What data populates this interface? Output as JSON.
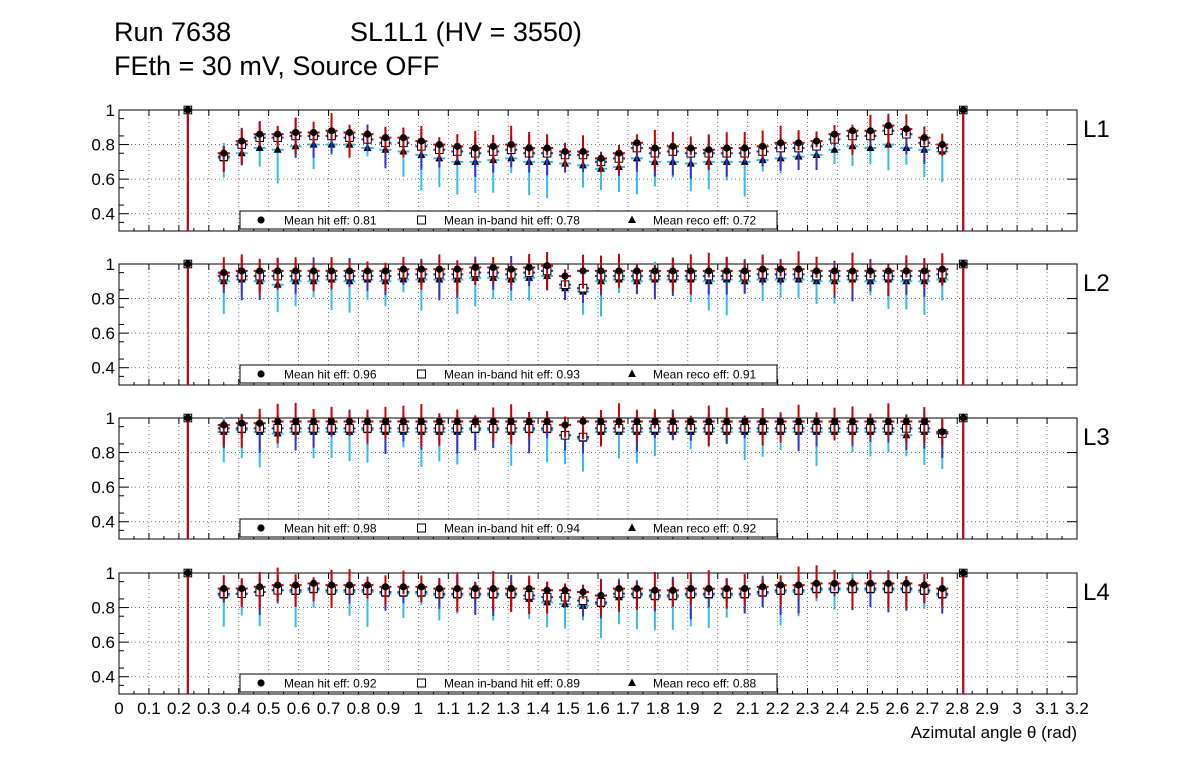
{
  "header": {
    "run": "Run 7638",
    "chamber": "SL1L1 (HV = 3550)",
    "settings": "FEth = 30 mV, Source OFF"
  },
  "colors": {
    "hit": "#cc0000",
    "inband": "#3333cc",
    "reco": "#33bbee",
    "axis": "#000000",
    "grid": "#555555"
  },
  "chart_data": {
    "type": "scatter",
    "xlabel": "Azimutal angle θ (rad)",
    "xlim": [
      0,
      3.2
    ],
    "ylim": [
      0.3,
      1.0
    ],
    "x_ticks": [
      0,
      0.1,
      0.2,
      0.3,
      0.4,
      0.5,
      0.6,
      0.7,
      0.8,
      0.9,
      1,
      1.1,
      1.2,
      1.3,
      1.4,
      1.5,
      1.6,
      1.7,
      1.8,
      1.9,
      2,
      2.1,
      2.2,
      2.3,
      2.4,
      2.5,
      2.6,
      2.7,
      2.8,
      2.9,
      3,
      3.1,
      3.2
    ],
    "x_tick_labels": [
      "0",
      "0.1",
      "0.2",
      "0.3",
      "0.4",
      "0.5",
      "0.6",
      "0.7",
      "0.8",
      "0.9",
      "1",
      "1.1",
      "1.2",
      "1.3",
      "1.4",
      "1.5",
      "1.6",
      "1.7",
      "1.8",
      "1.9",
      "2",
      "2.1",
      "2.2",
      "2.3",
      "2.4",
      "2.5",
      "2.6",
      "2.7",
      "2.8",
      "2.9",
      "3",
      "3.1",
      "3.2"
    ],
    "y_ticks": [
      0.4,
      0.6,
      0.8,
      1
    ],
    "y_tick_labels": [
      "0.4",
      "0.6",
      "0.8",
      "1"
    ],
    "x": [
      0.23,
      0.35,
      0.41,
      0.47,
      0.53,
      0.59,
      0.65,
      0.71,
      0.77,
      0.83,
      0.89,
      0.95,
      1.01,
      1.07,
      1.13,
      1.19,
      1.25,
      1.31,
      1.37,
      1.43,
      1.49,
      1.55,
      1.61,
      1.67,
      1.73,
      1.79,
      1.85,
      1.91,
      1.97,
      2.03,
      2.09,
      2.15,
      2.21,
      2.27,
      2.33,
      2.39,
      2.45,
      2.51,
      2.57,
      2.63,
      2.69,
      2.75,
      2.82
    ],
    "panels": [
      {
        "layer": "L1",
        "legend": {
          "hit": "Mean hit  eff: 0.81",
          "inband": "Mean in-band hit eff: 0.78",
          "reco": "Mean reco eff: 0.72"
        },
        "series": [
          {
            "name": "hit",
            "values": [
              1.0,
              0.75,
              0.82,
              0.86,
              0.86,
              0.87,
              0.87,
              0.88,
              0.87,
              0.86,
              0.84,
              0.84,
              0.82,
              0.8,
              0.79,
              0.78,
              0.79,
              0.8,
              0.78,
              0.78,
              0.76,
              0.76,
              0.72,
              0.75,
              0.81,
              0.78,
              0.79,
              0.78,
              0.77,
              0.78,
              0.78,
              0.79,
              0.81,
              0.81,
              0.82,
              0.86,
              0.88,
              0.88,
              0.91,
              0.89,
              0.84,
              0.8,
              1.0
            ]
          },
          {
            "name": "inband",
            "values": [
              1.0,
              0.73,
              0.8,
              0.84,
              0.84,
              0.85,
              0.85,
              0.85,
              0.84,
              0.83,
              0.81,
              0.81,
              0.79,
              0.77,
              0.76,
              0.75,
              0.76,
              0.77,
              0.75,
              0.75,
              0.74,
              0.74,
              0.7,
              0.72,
              0.78,
              0.75,
              0.76,
              0.75,
              0.75,
              0.75,
              0.75,
              0.76,
              0.78,
              0.78,
              0.79,
              0.83,
              0.85,
              0.85,
              0.88,
              0.86,
              0.81,
              0.78,
              1.0
            ]
          },
          {
            "name": "reco",
            "values": [
              1.0,
              0.72,
              0.75,
              0.78,
              0.77,
              0.79,
              0.8,
              0.8,
              0.8,
              0.78,
              0.77,
              0.76,
              0.74,
              0.72,
              0.7,
              0.7,
              0.71,
              0.72,
              0.7,
              0.7,
              0.69,
              0.68,
              0.66,
              0.67,
              0.72,
              0.7,
              0.7,
              0.69,
              0.7,
              0.7,
              0.7,
              0.71,
              0.72,
              0.73,
              0.74,
              0.77,
              0.79,
              0.78,
              0.8,
              0.78,
              0.77,
              0.76,
              1.0
            ]
          }
        ]
      },
      {
        "layer": "L2",
        "legend": {
          "hit": "Mean hit  eff: 0.96",
          "inband": "Mean in-band hit eff: 0.93",
          "reco": "Mean reco eff: 0.91"
        },
        "series": [
          {
            "name": "hit",
            "values": [
              1.0,
              0.95,
              0.96,
              0.96,
              0.96,
              0.96,
              0.96,
              0.96,
              0.96,
              0.96,
              0.96,
              0.97,
              0.97,
              0.97,
              0.97,
              0.98,
              0.98,
              0.97,
              0.98,
              0.99,
              0.93,
              0.96,
              0.96,
              0.96,
              0.96,
              0.96,
              0.96,
              0.96,
              0.96,
              0.96,
              0.96,
              0.97,
              0.97,
              0.97,
              0.96,
              0.96,
              0.96,
              0.96,
              0.96,
              0.96,
              0.96,
              0.97,
              1.0
            ]
          },
          {
            "name": "inband",
            "values": [
              1.0,
              0.93,
              0.93,
              0.93,
              0.93,
              0.93,
              0.93,
              0.93,
              0.93,
              0.93,
              0.93,
              0.94,
              0.94,
              0.94,
              0.94,
              0.95,
              0.95,
              0.94,
              0.95,
              0.96,
              0.88,
              0.86,
              0.93,
              0.93,
              0.93,
              0.93,
              0.93,
              0.93,
              0.93,
              0.93,
              0.93,
              0.94,
              0.94,
              0.94,
              0.93,
              0.93,
              0.93,
              0.93,
              0.93,
              0.93,
              0.93,
              0.94,
              1.0
            ]
          },
          {
            "name": "reco",
            "values": [
              1.0,
              0.9,
              0.91,
              0.9,
              0.88,
              0.9,
              0.9,
              0.91,
              0.9,
              0.91,
              0.9,
              0.91,
              0.91,
              0.91,
              0.91,
              0.92,
              0.92,
              0.91,
              0.92,
              0.93,
              0.86,
              0.84,
              0.9,
              0.91,
              0.9,
              0.91,
              0.91,
              0.91,
              0.9,
              0.91,
              0.9,
              0.91,
              0.91,
              0.91,
              0.9,
              0.9,
              0.91,
              0.9,
              0.91,
              0.9,
              0.9,
              0.91,
              1.0
            ]
          }
        ]
      },
      {
        "layer": "L3",
        "legend": {
          "hit": "Mean hit  eff: 0.98",
          "inband": "Mean in-band hit eff: 0.94",
          "reco": "Mean reco eff: 0.92"
        },
        "series": [
          {
            "name": "hit",
            "values": [
              1.0,
              0.96,
              0.97,
              0.97,
              0.98,
              0.98,
              0.98,
              0.98,
              0.98,
              0.98,
              0.98,
              0.98,
              0.98,
              0.98,
              0.98,
              0.98,
              0.98,
              0.98,
              0.98,
              0.98,
              0.96,
              0.98,
              0.98,
              0.98,
              0.98,
              0.98,
              0.98,
              0.98,
              0.98,
              0.98,
              0.98,
              0.98,
              0.98,
              0.98,
              0.98,
              0.98,
              0.98,
              0.98,
              0.98,
              0.98,
              0.98,
              0.92,
              1.0
            ]
          },
          {
            "name": "inband",
            "values": [
              1.0,
              0.94,
              0.94,
              0.94,
              0.94,
              0.94,
              0.94,
              0.94,
              0.94,
              0.94,
              0.94,
              0.94,
              0.94,
              0.94,
              0.94,
              0.94,
              0.94,
              0.94,
              0.94,
              0.94,
              0.9,
              0.89,
              0.94,
              0.94,
              0.94,
              0.94,
              0.94,
              0.94,
              0.94,
              0.94,
              0.94,
              0.94,
              0.94,
              0.94,
              0.94,
              0.94,
              0.94,
              0.94,
              0.94,
              0.94,
              0.94,
              0.91,
              1.0
            ]
          },
          {
            "name": "reco",
            "values": [
              1.0,
              0.92,
              0.93,
              0.92,
              0.91,
              0.92,
              0.92,
              0.92,
              0.92,
              0.93,
              0.92,
              0.92,
              0.92,
              0.92,
              0.92,
              0.93,
              0.93,
              0.92,
              0.93,
              0.93,
              0.9,
              0.88,
              0.92,
              0.92,
              0.92,
              0.92,
              0.92,
              0.92,
              0.92,
              0.92,
              0.92,
              0.92,
              0.92,
              0.92,
              0.92,
              0.92,
              0.92,
              0.92,
              0.92,
              0.9,
              0.92,
              0.91,
              1.0
            ]
          }
        ]
      },
      {
        "layer": "L4",
        "legend": {
          "hit": "Mean hit  eff: 0.92",
          "inband": "Mean in-band hit eff: 0.89",
          "reco": "Mean reco eff: 0.88"
        },
        "series": [
          {
            "name": "hit",
            "values": [
              1.0,
              0.91,
              0.91,
              0.92,
              0.93,
              0.93,
              0.94,
              0.93,
              0.93,
              0.93,
              0.92,
              0.92,
              0.92,
              0.91,
              0.91,
              0.91,
              0.91,
              0.91,
              0.91,
              0.9,
              0.9,
              0.89,
              0.87,
              0.91,
              0.91,
              0.9,
              0.9,
              0.91,
              0.91,
              0.91,
              0.91,
              0.92,
              0.93,
              0.93,
              0.94,
              0.94,
              0.94,
              0.94,
              0.94,
              0.94,
              0.93,
              0.91,
              1.0
            ]
          },
          {
            "name": "inband",
            "values": [
              1.0,
              0.88,
              0.88,
              0.89,
              0.9,
              0.9,
              0.91,
              0.9,
              0.9,
              0.9,
              0.89,
              0.89,
              0.89,
              0.88,
              0.88,
              0.88,
              0.88,
              0.88,
              0.87,
              0.86,
              0.86,
              0.84,
              0.83,
              0.88,
              0.88,
              0.87,
              0.87,
              0.88,
              0.88,
              0.88,
              0.88,
              0.89,
              0.9,
              0.9,
              0.91,
              0.91,
              0.91,
              0.91,
              0.91,
              0.91,
              0.9,
              0.88,
              1.0
            ]
          },
          {
            "name": "reco",
            "values": [
              1.0,
              0.87,
              0.88,
              0.89,
              0.9,
              0.89,
              0.9,
              0.89,
              0.89,
              0.89,
              0.88,
              0.88,
              0.88,
              0.87,
              0.87,
              0.87,
              0.87,
              0.87,
              0.85,
              0.83,
              0.82,
              0.81,
              0.82,
              0.86,
              0.87,
              0.86,
              0.86,
              0.87,
              0.87,
              0.87,
              0.87,
              0.88,
              0.89,
              0.89,
              0.9,
              0.9,
              0.9,
              0.9,
              0.9,
              0.9,
              0.89,
              0.87,
              1.0
            ]
          }
        ]
      }
    ]
  }
}
